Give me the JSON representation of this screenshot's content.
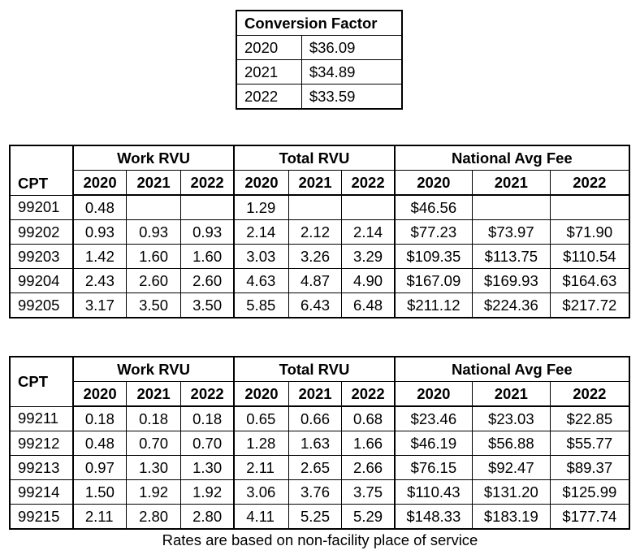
{
  "conversion_factor": {
    "title": "Conversion Factor",
    "rows": [
      [
        "2020",
        "$36.09"
      ],
      [
        "2021",
        "$34.89"
      ],
      [
        "2022",
        "$33.59"
      ]
    ]
  },
  "table1": {
    "cpt_header": "CPT",
    "groups": [
      "Work RVU",
      "Total RVU",
      "National Avg Fee"
    ],
    "years": [
      "2020",
      "2021",
      "2022"
    ],
    "rows": [
      [
        "99201",
        "0.48",
        "",
        "",
        "1.29",
        "",
        "",
        "$46.56",
        "",
        ""
      ],
      [
        "99202",
        "0.93",
        "0.93",
        "0.93",
        "2.14",
        "2.12",
        "2.14",
        "$77.23",
        "$73.97",
        "$71.90"
      ],
      [
        "99203",
        "1.42",
        "1.60",
        "1.60",
        "3.03",
        "3.26",
        "3.29",
        "$109.35",
        "$113.75",
        "$110.54"
      ],
      [
        "99204",
        "2.43",
        "2.60",
        "2.60",
        "4.63",
        "4.87",
        "4.90",
        "$167.09",
        "$169.93",
        "$164.63"
      ],
      [
        "99205",
        "3.17",
        "3.50",
        "3.50",
        "5.85",
        "6.43",
        "6.48",
        "$211.12",
        "$224.36",
        "$217.72"
      ]
    ]
  },
  "table2": {
    "cpt_header": "CPT",
    "groups": [
      "Work RVU",
      "Total RVU",
      "National Avg Fee"
    ],
    "years": [
      "2020",
      "2021",
      "2022"
    ],
    "rows": [
      [
        "99211",
        "0.18",
        "0.18",
        "0.18",
        "0.65",
        "0.66",
        "0.68",
        "$23.46",
        "$23.03",
        "$22.85"
      ],
      [
        "99212",
        "0.48",
        "0.70",
        "0.70",
        "1.28",
        "1.63",
        "1.66",
        "$46.19",
        "$56.88",
        "$55.77"
      ],
      [
        "99213",
        "0.97",
        "1.30",
        "1.30",
        "2.11",
        "2.65",
        "2.66",
        "$76.15",
        "$92.47",
        "$89.37"
      ],
      [
        "99214",
        "1.50",
        "1.92",
        "1.92",
        "3.06",
        "3.76",
        "3.75",
        "$110.43",
        "$131.20",
        "$125.99"
      ],
      [
        "99215",
        "2.11",
        "2.80",
        "2.80",
        "4.11",
        "5.25",
        "5.29",
        "$148.33",
        "$183.19",
        "$177.74"
      ]
    ]
  },
  "footnote": "Rates are based on non-facility place of service"
}
